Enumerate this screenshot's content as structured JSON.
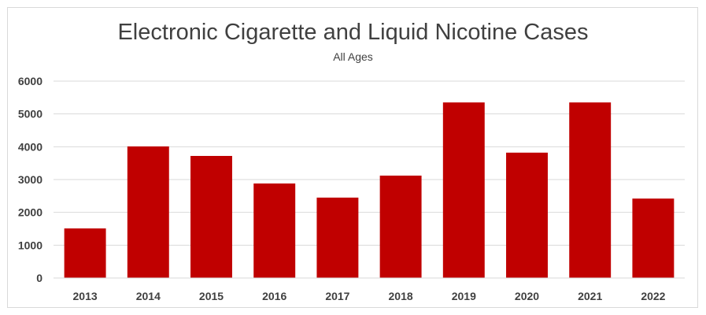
{
  "chart_data": {
    "type": "bar",
    "title": "Electronic Cigarette and Liquid Nicotine Cases",
    "subtitle": "All Ages",
    "categories": [
      "2013",
      "2014",
      "2015",
      "2016",
      "2017",
      "2018",
      "2019",
      "2020",
      "2021",
      "2022"
    ],
    "values": [
      1510,
      4010,
      3720,
      2880,
      2450,
      3120,
      5350,
      3820,
      5350,
      2420
    ],
    "ylim": [
      0,
      6000
    ],
    "yticks": [
      "0",
      "1000",
      "2000",
      "3000",
      "4000",
      "5000",
      "6000"
    ],
    "xlabel": "",
    "ylabel": "",
    "grid": true,
    "legend": "none",
    "bar_color": "#c00000"
  }
}
